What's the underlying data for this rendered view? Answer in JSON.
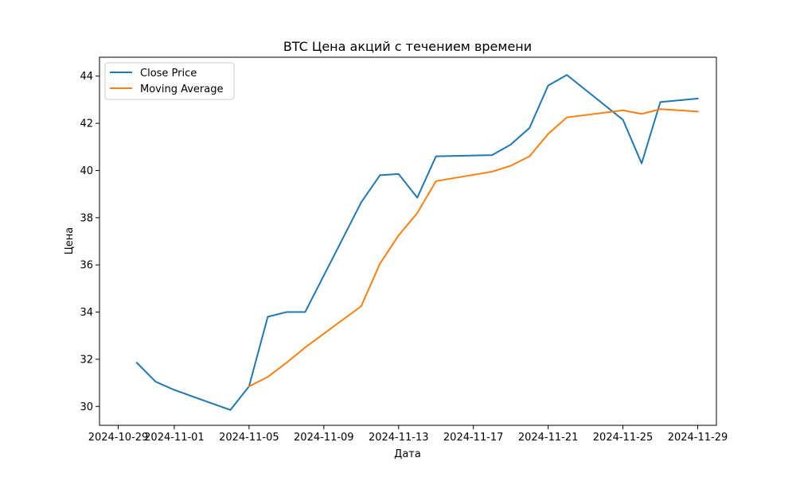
{
  "chart_data": {
    "type": "line",
    "title": "BTC Цена акций с течением времени",
    "xlabel": "Дата",
    "ylabel": "Цена",
    "x_ticks": [
      "2024-10-29",
      "2024-11-01",
      "2024-11-05",
      "2024-11-09",
      "2024-11-13",
      "2024-11-17",
      "2024-11-21",
      "2024-11-25",
      "2024-11-29"
    ],
    "y_ticks": [
      30,
      32,
      34,
      36,
      38,
      40,
      42,
      44
    ],
    "xlim": [
      "2024-10-28",
      "2024-11-30"
    ],
    "ylim": [
      29.2,
      44.8
    ],
    "legend_position": "top-left",
    "grid": false,
    "series": [
      {
        "name": "Close Price",
        "color": "#1f77b4",
        "points": [
          [
            "2024-10-30",
            31.85
          ],
          [
            "2024-10-31",
            31.05
          ],
          [
            "2024-11-01",
            30.7
          ],
          [
            "2024-11-04",
            29.85
          ],
          [
            "2024-11-05",
            30.85
          ],
          [
            "2024-11-06",
            33.8
          ],
          [
            "2024-11-07",
            34.0
          ],
          [
            "2024-11-08",
            34.0
          ],
          [
            "2024-11-11",
            38.65
          ],
          [
            "2024-11-12",
            39.8
          ],
          [
            "2024-11-13",
            39.85
          ],
          [
            "2024-11-14",
            38.85
          ],
          [
            "2024-11-15",
            40.6
          ],
          [
            "2024-11-18",
            40.65
          ],
          [
            "2024-11-19",
            41.1
          ],
          [
            "2024-11-20",
            41.8
          ],
          [
            "2024-11-21",
            43.6
          ],
          [
            "2024-11-22",
            44.05
          ],
          [
            "2024-11-25",
            42.15
          ],
          [
            "2024-11-26",
            40.3
          ],
          [
            "2024-11-27",
            42.9
          ],
          [
            "2024-11-29",
            43.05
          ]
        ]
      },
      {
        "name": "Moving Average",
        "color": "#ff7f0e",
        "points": [
          [
            "2024-11-05",
            30.85
          ],
          [
            "2024-11-06",
            31.25
          ],
          [
            "2024-11-07",
            31.85
          ],
          [
            "2024-11-08",
            32.5
          ],
          [
            "2024-11-11",
            34.25
          ],
          [
            "2024-11-12",
            36.05
          ],
          [
            "2024-11-13",
            37.25
          ],
          [
            "2024-11-14",
            38.2
          ],
          [
            "2024-11-15",
            39.55
          ],
          [
            "2024-11-18",
            39.95
          ],
          [
            "2024-11-19",
            40.2
          ],
          [
            "2024-11-20",
            40.6
          ],
          [
            "2024-11-21",
            41.55
          ],
          [
            "2024-11-22",
            42.25
          ],
          [
            "2024-11-25",
            42.55
          ],
          [
            "2024-11-26",
            42.4
          ],
          [
            "2024-11-27",
            42.6
          ],
          [
            "2024-11-29",
            42.5
          ]
        ]
      }
    ]
  }
}
